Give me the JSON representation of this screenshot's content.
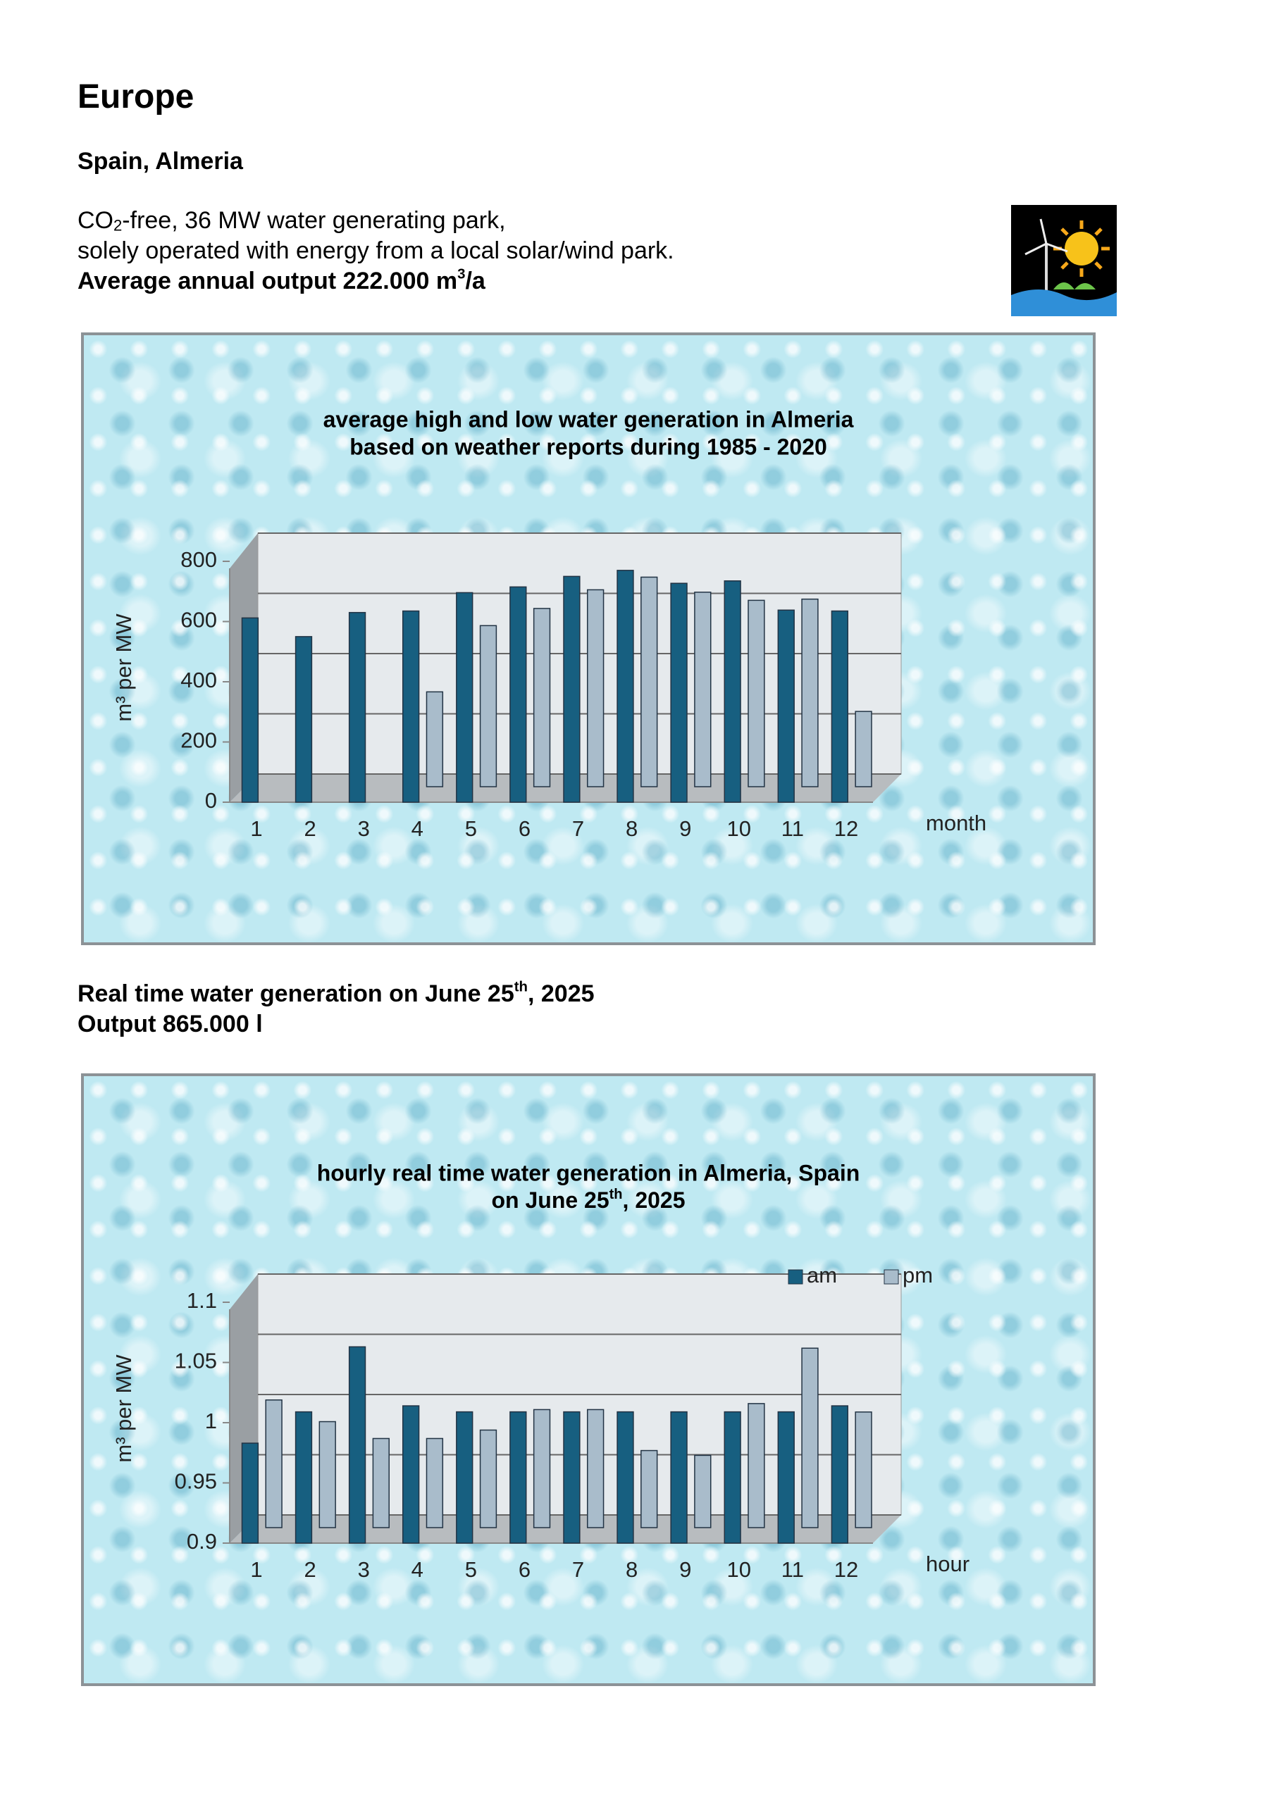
{
  "heading": "Europe",
  "subheading": "Spain, Almeria",
  "intro": {
    "line1": [
      "CO",
      "2",
      "-free, 36 MW water generating park,"
    ],
    "line2": "solely operated with energy from a local solar/wind park.",
    "line3": [
      "Average annual output 222.000 m",
      "3",
      "/a"
    ]
  },
  "realtime": {
    "line1": [
      "Real time water generation on June 25",
      "th",
      ", 2025"
    ],
    "line2": "Output 865.000 l"
  },
  "chart_data": [
    {
      "type": "bar",
      "title": [
        "average high and low water generation in Almeria",
        "based on weather reports during 1985 - 2020"
      ],
      "ylabel": "m³ per MW",
      "xlabel": "month",
      "categories": [
        "1",
        "2",
        "3",
        "4",
        "5",
        "6",
        "7",
        "8",
        "9",
        "10",
        "11",
        "12"
      ],
      "series": [
        {
          "color": "#175f80",
          "values": [
            612,
            550,
            630,
            635,
            696,
            715,
            750,
            770,
            727,
            735,
            638,
            635
          ]
        },
        {
          "color": "#a9bccb",
          "values": [
            0,
            0,
            0,
            315,
            535,
            592,
            654,
            696,
            646,
            619,
            623,
            250
          ]
        }
      ],
      "ylim": [
        0,
        800
      ],
      "yticks": [
        0,
        200,
        400,
        600,
        800
      ],
      "grid": true
    },
    {
      "type": "bar",
      "title": [
        "hourly real time water generation in Almeria, Spain",
        [
          "on June 25",
          "th",
          ", 2025"
        ]
      ],
      "ylabel": "m³ per MW",
      "xlabel": "hour",
      "categories": [
        "1",
        "2",
        "3",
        "4",
        "5",
        "6",
        "7",
        "8",
        "9",
        "10",
        "11",
        "12"
      ],
      "series": [
        {
          "name": "am",
          "color": "#175f80",
          "values": [
            0.983,
            1.009,
            1.063,
            1.014,
            1.009,
            1.009,
            1.009,
            1.009,
            1.009,
            1.009,
            1.009,
            1.014
          ]
        },
        {
          "name": "pm",
          "color": "#a9bccb",
          "values": [
            1.006,
            0.988,
            0.974,
            0.974,
            0.981,
            0.998,
            0.998,
            0.964,
            0.96,
            1.003,
            1.049,
            0.996
          ]
        }
      ],
      "ylim": [
        0.9,
        1.1
      ],
      "yticks": [
        0.9,
        0.95,
        1,
        1.05,
        1.1
      ],
      "grid": true,
      "legend": "top-right"
    }
  ]
}
